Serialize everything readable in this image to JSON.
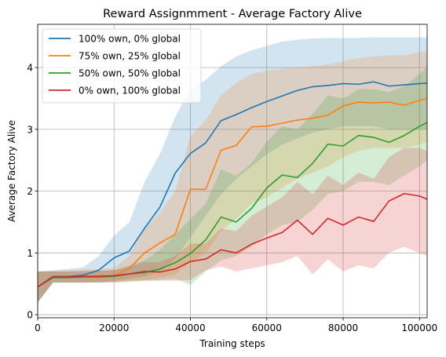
{
  "chart_data": {
    "type": "line",
    "title": "Reward Assignmment - Average Factory Alive",
    "xlabel": "Training steps",
    "ylabel": "Average Factory Alive",
    "xlim": [
      0,
      102000
    ],
    "ylim": [
      -0.05,
      4.7
    ],
    "xticks": [
      0,
      20000,
      40000,
      60000,
      80000,
      100000
    ],
    "xtick_labels": [
      "0",
      "20000",
      "40000",
      "60000",
      "80000",
      "100000"
    ],
    "yticks": [
      0,
      1,
      2,
      3,
      4
    ],
    "ytick_labels": [
      "0",
      "1",
      "2",
      "3",
      "4"
    ],
    "grid": true,
    "legend_position": "upper-left",
    "band_opacity": 0.2,
    "series": [
      {
        "name": "100% own, 0% global",
        "color": "#1f77b4",
        "x": [
          0,
          4000,
          8000,
          12000,
          16000,
          20000,
          24000,
          28000,
          32000,
          36000,
          40000,
          44000,
          48000,
          52000,
          56000,
          60000,
          64000,
          68000,
          72000,
          76000,
          80000,
          84000,
          88000,
          92000,
          96000,
          100000,
          102000
        ],
        "y": [
          0.45,
          0.62,
          0.62,
          0.64,
          0.72,
          0.92,
          1.03,
          1.4,
          1.74,
          2.29,
          2.61,
          2.78,
          3.14,
          3.24,
          3.35,
          3.45,
          3.54,
          3.63,
          3.69,
          3.71,
          3.74,
          3.73,
          3.77,
          3.7,
          3.72,
          3.74,
          3.75
        ],
        "lower": [
          0.2,
          0.52,
          0.52,
          0.52,
          0.52,
          0.55,
          0.58,
          0.62,
          0.7,
          0.9,
          1.25,
          1.6,
          1.95,
          2.2,
          2.4,
          2.6,
          2.75,
          2.85,
          2.95,
          3.0,
          3.05,
          3.05,
          3.05,
          3.0,
          3.0,
          3.0,
          3.0
        ],
        "upper": [
          0.7,
          0.72,
          0.74,
          0.77,
          0.95,
          1.28,
          1.5,
          2.15,
          2.6,
          3.2,
          3.65,
          3.8,
          4.02,
          4.18,
          4.28,
          4.35,
          4.42,
          4.45,
          4.47,
          4.48,
          4.48,
          4.48,
          4.49,
          4.49,
          4.49,
          4.49,
          4.49
        ]
      },
      {
        "name": "75% own, 25% global",
        "color": "#ff7f0e",
        "x": [
          0,
          4000,
          8000,
          12000,
          16000,
          20000,
          24000,
          28000,
          32000,
          36000,
          40000,
          44000,
          48000,
          52000,
          56000,
          60000,
          64000,
          68000,
          72000,
          76000,
          80000,
          84000,
          88000,
          92000,
          96000,
          100000,
          102000
        ],
        "y": [
          0.45,
          0.61,
          0.61,
          0.62,
          0.63,
          0.63,
          0.75,
          1.0,
          1.16,
          1.3,
          2.03,
          2.03,
          2.66,
          2.74,
          3.04,
          3.05,
          3.1,
          3.15,
          3.18,
          3.23,
          3.38,
          3.44,
          3.43,
          3.44,
          3.39,
          3.47,
          3.5
        ],
        "lower": [
          0.2,
          0.52,
          0.52,
          0.52,
          0.52,
          0.52,
          0.54,
          0.56,
          0.6,
          0.65,
          0.85,
          1.0,
          1.35,
          1.55,
          1.8,
          1.9,
          2.05,
          2.2,
          2.3,
          2.4,
          2.55,
          2.65,
          2.7,
          2.7,
          2.7,
          2.75,
          2.8
        ],
        "upper": [
          0.7,
          0.71,
          0.72,
          0.73,
          0.74,
          0.76,
          0.95,
          1.4,
          1.65,
          2.0,
          2.9,
          3.15,
          3.55,
          3.75,
          3.9,
          3.95,
          3.98,
          4.0,
          4.02,
          4.05,
          4.1,
          4.15,
          4.18,
          4.2,
          4.2,
          4.25,
          4.27
        ]
      },
      {
        "name": "50% own, 50% global",
        "color": "#2ca02c",
        "x": [
          0,
          4000,
          8000,
          12000,
          16000,
          20000,
          24000,
          28000,
          32000,
          36000,
          40000,
          44000,
          48000,
          52000,
          56000,
          60000,
          64000,
          68000,
          72000,
          76000,
          80000,
          84000,
          88000,
          92000,
          96000,
          100000,
          102000
        ],
        "y": [
          0.45,
          0.6,
          0.6,
          0.61,
          0.61,
          0.62,
          0.66,
          0.68,
          0.74,
          0.84,
          0.99,
          1.21,
          1.58,
          1.5,
          1.72,
          2.05,
          2.26,
          2.22,
          2.45,
          2.76,
          2.73,
          2.9,
          2.87,
          2.79,
          2.9,
          3.05,
          3.11
        ],
        "lower": [
          0.2,
          0.52,
          0.52,
          0.52,
          0.52,
          0.52,
          0.53,
          0.55,
          0.56,
          0.58,
          0.48,
          0.7,
          0.88,
          0.95,
          1.1,
          1.3,
          1.45,
          1.5,
          1.7,
          1.95,
          2.0,
          2.15,
          2.15,
          2.1,
          2.25,
          2.4,
          2.5
        ],
        "upper": [
          0.7,
          0.7,
          0.7,
          0.7,
          0.71,
          0.72,
          0.8,
          0.88,
          1.05,
          1.3,
          1.55,
          1.8,
          2.35,
          2.25,
          2.45,
          2.8,
          3.05,
          3.0,
          3.25,
          3.55,
          3.5,
          3.65,
          3.65,
          3.6,
          3.7,
          3.9,
          4.0
        ]
      },
      {
        "name": "0% own, 100% global",
        "color": "#d62728",
        "x": [
          0,
          4000,
          8000,
          12000,
          16000,
          20000,
          24000,
          28000,
          32000,
          36000,
          40000,
          44000,
          48000,
          52000,
          56000,
          60000,
          64000,
          68000,
          72000,
          76000,
          80000,
          84000,
          88000,
          92000,
          96000,
          100000,
          102000
        ],
        "y": [
          0.45,
          0.61,
          0.61,
          0.62,
          0.62,
          0.63,
          0.66,
          0.7,
          0.69,
          0.74,
          0.86,
          0.9,
          1.05,
          1.0,
          1.14,
          1.24,
          1.33,
          1.53,
          1.3,
          1.56,
          1.45,
          1.58,
          1.51,
          1.84,
          1.96,
          1.92,
          1.87
        ],
        "lower": [
          0.2,
          0.52,
          0.52,
          0.52,
          0.53,
          0.53,
          0.55,
          0.55,
          0.55,
          0.55,
          0.56,
          0.72,
          0.78,
          0.7,
          0.75,
          0.8,
          0.85,
          0.95,
          0.65,
          0.9,
          0.7,
          0.8,
          0.75,
          1.0,
          1.1,
          1.0,
          0.95
        ],
        "upper": [
          0.7,
          0.7,
          0.7,
          0.71,
          0.71,
          0.72,
          0.78,
          0.85,
          0.85,
          0.95,
          1.15,
          1.15,
          1.4,
          1.35,
          1.6,
          1.75,
          1.9,
          2.15,
          1.95,
          2.25,
          2.1,
          2.3,
          2.2,
          2.55,
          2.7,
          2.7,
          2.65
        ]
      }
    ]
  }
}
